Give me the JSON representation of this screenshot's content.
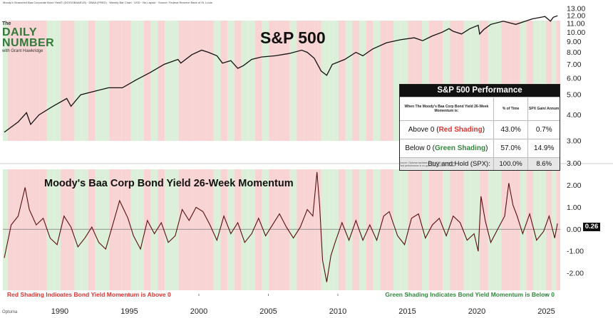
{
  "header_text": "Moody's Seasoned Baa Corporate Bond Yield© (DGS10BAAEU5) · DBAA (FRED) · Weekly Bar Chart · USD · No Layout · Source: Federal Reserve Bank of St. Louis",
  "logo": {
    "the": "The",
    "line1": "DAILY",
    "line2": "NUMBER",
    "byline": "with Grant Hawkridge"
  },
  "footer_brand": "Optuma",
  "colors": {
    "red_shade": "#f9d4d4",
    "green_shade": "#dcefd9",
    "line": "#111111",
    "momentum_line": "#5a0d0d",
    "red_text": "#d93430",
    "green_text": "#2f8a3c"
  },
  "table": {
    "title": "S&P 500 Performance",
    "col_header_1": "When The Moody's Baa Corp Bond Yield 26-Week Momentum is:",
    "col_header_2": "% of Time",
    "col_header_3": "SPX Gain/ Annum",
    "rows": [
      {
        "prefix": "Above 0 (",
        "shade": "Red Shading",
        "suffix": ")",
        "pct": "43.0%",
        "gain": "0.7%"
      },
      {
        "prefix": "Below 0 (",
        "shade": "Green Shading",
        "suffix": ")",
        "pct": "57.0%",
        "gain": "14.9%"
      }
    ],
    "buyhold": {
      "label": "Buy and Hold (SPX):",
      "pct": "100.0%",
      "gain": "8.6%"
    },
    "note1": "Source: Optuma backtest (1985-2025). Annualized",
    "note2": "Past performance is no guarantee of future results"
  },
  "current_value_label": "0.26",
  "chart_data": [
    {
      "type": "line",
      "title": "S&P 500",
      "xlabel": "",
      "ylabel": "",
      "scale": "log",
      "x_ticks": [
        "1990",
        "1995",
        "2000",
        "2005",
        "2010",
        "2015",
        "2020",
        "2025"
      ],
      "y_ticks": [
        "3.00",
        "4.00",
        "5.00",
        "6.00",
        "7.00",
        "8.00",
        "9.00",
        "10.00",
        "11.00",
        "12.00",
        "13.00"
      ],
      "ylim": [
        3.0,
        13.0
      ],
      "xlim": [
        1985.9,
        2026.0
      ],
      "grid": false,
      "series": [
        {
          "x": [
            1986.0,
            1987.0,
            1987.6,
            1987.9,
            1988.5,
            1989.5,
            1990.5,
            1990.8,
            1991.5,
            1992.5,
            1993.5,
            1994.5,
            1995.5,
            1996.5,
            1997.5,
            1998.5,
            1998.7,
            1999.5,
            2000.2,
            2000.7,
            2001.3,
            2001.7,
            2002.3,
            2002.8,
            2003.2,
            2003.8,
            2004.5,
            2005.5,
            2006.5,
            2007.4,
            2007.8,
            2008.3,
            2008.8,
            2009.2,
            2009.6,
            2010.5,
            2011.3,
            2011.8,
            2012.5,
            2013.5,
            2014.5,
            2015.5,
            2016.1,
            2016.8,
            2017.5,
            2018.0,
            2018.3,
            2018.9,
            2019.5,
            2020.1,
            2020.2,
            2020.5,
            2021.0,
            2021.9,
            2022.8,
            2023.5,
            2024.0,
            2024.9,
            2025.3,
            2025.5,
            2025.8
          ],
          "y": [
            3.3,
            3.7,
            4.1,
            3.6,
            4.0,
            4.4,
            4.8,
            4.4,
            5.0,
            5.2,
            5.4,
            5.4,
            5.9,
            6.4,
            7.0,
            7.4,
            7.1,
            7.8,
            8.2,
            8.0,
            7.7,
            7.1,
            7.3,
            6.7,
            6.9,
            7.4,
            7.6,
            7.7,
            7.9,
            8.2,
            8.0,
            7.5,
            6.5,
            6.2,
            7.0,
            7.4,
            8.0,
            7.7,
            8.3,
            8.9,
            9.2,
            9.4,
            9.1,
            9.6,
            10.0,
            10.4,
            10.1,
            9.8,
            10.4,
            10.8,
            9.8,
            10.3,
            10.9,
            11.3,
            10.9,
            11.3,
            11.6,
            11.9,
            11.3,
            11.8,
            12.0
          ]
        }
      ]
    },
    {
      "type": "line",
      "title": "Moody's Baa Corp Bond Yield 26-Week Momentum",
      "xlabel": "",
      "ylabel": "",
      "x_ticks": [
        "1990",
        "1995",
        "2000",
        "2005",
        "2010",
        "2015",
        "2020",
        "2025"
      ],
      "y_ticks": [
        "-2.00",
        "-1.00",
        "0.00",
        "1.00",
        "2.00",
        "3.00"
      ],
      "ylim": [
        -2.45,
        3.05
      ],
      "xlim": [
        1985.9,
        2026.0
      ],
      "zero_line": true,
      "current_value": 0.26,
      "series": [
        {
          "x": [
            1986.0,
            1986.5,
            1987.0,
            1987.5,
            1987.8,
            1988.3,
            1988.8,
            1989.3,
            1989.8,
            1990.3,
            1990.8,
            1991.3,
            1991.8,
            1992.3,
            1992.8,
            1993.3,
            1993.8,
            1994.3,
            1994.6,
            1994.9,
            1995.3,
            1995.8,
            1996.3,
            1996.8,
            1997.3,
            1997.8,
            1998.3,
            1998.8,
            1999.3,
            1999.8,
            2000.3,
            2000.8,
            2001.3,
            2001.8,
            2002.3,
            2002.8,
            2003.3,
            2003.8,
            2004.3,
            2004.8,
            2005.3,
            2005.8,
            2006.3,
            2006.8,
            2007.3,
            2007.8,
            2008.2,
            2008.5,
            2008.7,
            2008.9,
            2009.2,
            2009.5,
            2009.8,
            2010.3,
            2010.8,
            2011.3,
            2011.8,
            2012.3,
            2012.8,
            2013.3,
            2013.7,
            2014.3,
            2014.8,
            2015.3,
            2015.8,
            2016.3,
            2016.8,
            2017.3,
            2017.8,
            2018.3,
            2018.8,
            2019.3,
            2019.8,
            2020.1,
            2020.3,
            2020.6,
            2021.0,
            2021.5,
            2022.0,
            2022.3,
            2022.6,
            2022.9,
            2023.3,
            2023.8,
            2024.3,
            2024.8,
            2025.2,
            2025.6,
            2025.8
          ],
          "y": [
            -1.3,
            0.2,
            0.6,
            1.9,
            0.9,
            0.2,
            0.5,
            -0.4,
            -0.7,
            0.6,
            0.1,
            -0.8,
            -0.4,
            0.1,
            -0.6,
            -0.9,
            0.2,
            1.3,
            0.9,
            0.5,
            -0.3,
            -0.9,
            0.4,
            -0.2,
            0.3,
            -0.6,
            -0.3,
            0.9,
            0.4,
            1.0,
            0.8,
            0.2,
            -0.5,
            0.6,
            -0.2,
            0.3,
            -0.6,
            -0.2,
            0.5,
            -0.3,
            0.2,
            0.7,
            0.1,
            -0.4,
            0.1,
            0.9,
            0.6,
            2.6,
            1.0,
            -1.4,
            -2.4,
            -1.2,
            -0.6,
            0.3,
            -0.5,
            0.4,
            -0.5,
            0.2,
            -0.5,
            0.6,
            0.8,
            -0.3,
            -0.7,
            0.5,
            0.7,
            -0.4,
            0.2,
            0.5,
            -0.3,
            0.6,
            0.3,
            -0.5,
            -0.2,
            -1.0,
            1.5,
            0.4,
            -0.6,
            0.0,
            0.6,
            2.1,
            1.1,
            0.6,
            -0.2,
            0.7,
            -0.5,
            -0.1,
            0.6,
            -0.4,
            0.26
          ]
        }
      ]
    }
  ],
  "footer_captions": {
    "left": "Red Shading Indicates Bond Yield Momentum is Above 0",
    "right": "Green Shading Indicates Bond Yield Momentum is Below 0"
  }
}
